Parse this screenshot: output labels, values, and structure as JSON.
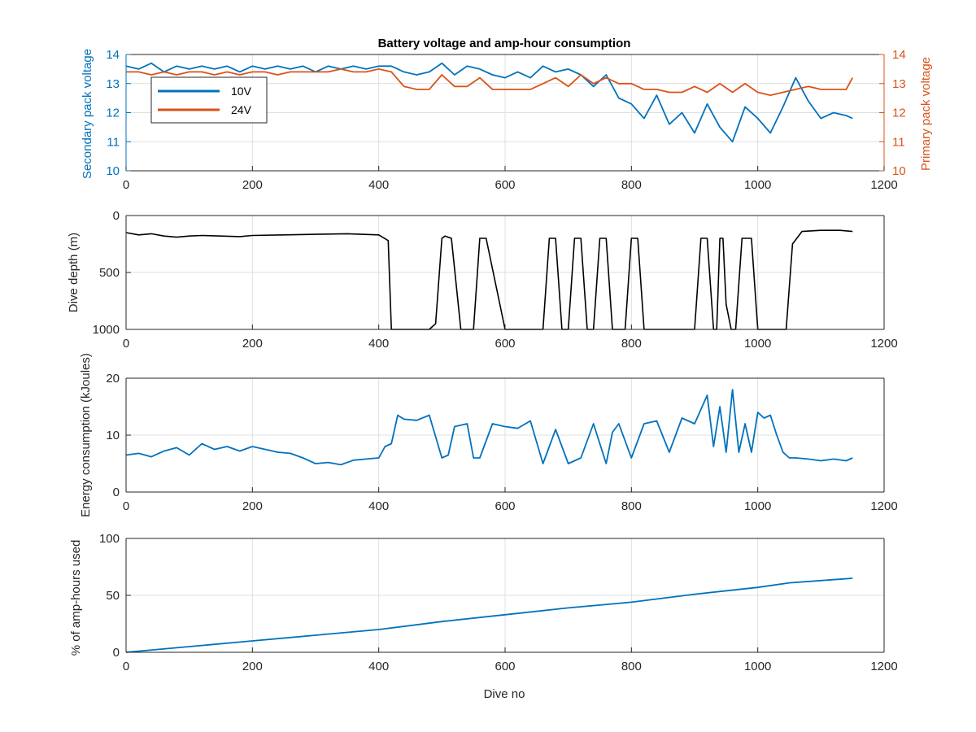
{
  "colors": {
    "series_10v": "#0072BD",
    "series_24v": "#D95319",
    "depth": "#000000",
    "energy": "#0072BD",
    "amp_hours": "#0072BD",
    "axis": "#262626",
    "grid": "#dfdfdf"
  },
  "chart_data": [
    {
      "type": "line",
      "title": "Battery voltage and amp-hour consumption",
      "xlabel": "",
      "ylabel": "Secondary pack voltage",
      "ylabel_right": "Primary pack voltage",
      "xlim": [
        0,
        1200
      ],
      "ylim": [
        10,
        14
      ],
      "ylim_right": [
        10,
        14
      ],
      "x_ticks": [
        0,
        200,
        400,
        600,
        800,
        1000,
        1200
      ],
      "y_ticks": [
        10,
        11,
        12,
        13,
        14
      ],
      "y_ticks_right": [
        10,
        11,
        12,
        13,
        14
      ],
      "grid": true,
      "legend": {
        "position": "top-left",
        "entries": [
          "10V",
          "24V"
        ]
      },
      "series": [
        {
          "name": "10V",
          "axis": "left",
          "x": [
            0,
            20,
            40,
            60,
            80,
            100,
            120,
            140,
            160,
            180,
            200,
            220,
            240,
            260,
            280,
            300,
            320,
            340,
            360,
            380,
            400,
            420,
            440,
            460,
            480,
            500,
            520,
            540,
            560,
            580,
            600,
            620,
            640,
            660,
            680,
            700,
            720,
            740,
            760,
            780,
            800,
            820,
            840,
            860,
            880,
            900,
            920,
            940,
            960,
            980,
            1000,
            1020,
            1040,
            1060,
            1080,
            1100,
            1120,
            1140,
            1150
          ],
          "y": [
            13.6,
            13.5,
            13.7,
            13.4,
            13.6,
            13.5,
            13.6,
            13.5,
            13.6,
            13.4,
            13.6,
            13.5,
            13.6,
            13.5,
            13.6,
            13.4,
            13.6,
            13.5,
            13.6,
            13.5,
            13.6,
            13.6,
            13.4,
            13.3,
            13.4,
            13.7,
            13.3,
            13.6,
            13.5,
            13.3,
            13.2,
            13.4,
            13.2,
            13.6,
            13.4,
            13.5,
            13.3,
            12.9,
            13.3,
            12.5,
            12.3,
            11.8,
            12.6,
            11.6,
            12.0,
            11.3,
            12.3,
            11.5,
            11.0,
            12.2,
            11.8,
            11.3,
            12.2,
            13.2,
            12.4,
            11.8,
            12.0,
            11.9,
            11.8
          ]
        },
        {
          "name": "24V",
          "axis": "right",
          "x": [
            0,
            20,
            40,
            60,
            80,
            100,
            120,
            140,
            160,
            180,
            200,
            220,
            240,
            260,
            280,
            300,
            320,
            340,
            360,
            380,
            400,
            420,
            440,
            460,
            480,
            500,
            520,
            540,
            560,
            580,
            600,
            620,
            640,
            660,
            680,
            700,
            720,
            740,
            760,
            780,
            800,
            820,
            840,
            860,
            880,
            900,
            920,
            940,
            960,
            980,
            1000,
            1020,
            1040,
            1060,
            1080,
            1100,
            1120,
            1140,
            1150
          ],
          "y": [
            13.4,
            13.4,
            13.3,
            13.4,
            13.3,
            13.4,
            13.4,
            13.3,
            13.4,
            13.3,
            13.4,
            13.4,
            13.3,
            13.4,
            13.4,
            13.4,
            13.4,
            13.5,
            13.4,
            13.4,
            13.5,
            13.4,
            12.9,
            12.8,
            12.8,
            13.3,
            12.9,
            12.9,
            13.2,
            12.8,
            12.8,
            12.8,
            12.8,
            13.0,
            13.2,
            12.9,
            13.3,
            13.0,
            13.2,
            13.0,
            13.0,
            12.8,
            12.8,
            12.7,
            12.7,
            12.9,
            12.7,
            13.0,
            12.7,
            13.0,
            12.7,
            12.6,
            12.7,
            12.8,
            12.9,
            12.8,
            12.8,
            12.8,
            13.2
          ]
        }
      ]
    },
    {
      "type": "line",
      "title": "",
      "xlabel": "",
      "ylabel": "Dive depth (m)",
      "xlim": [
        0,
        1200
      ],
      "ylim": [
        0,
        1000
      ],
      "y_reversed": true,
      "x_ticks": [
        0,
        200,
        400,
        600,
        800,
        1000,
        1200
      ],
      "y_ticks": [
        0,
        500,
        1000
      ],
      "grid": true,
      "series": [
        {
          "x": [
            0,
            20,
            40,
            60,
            80,
            100,
            120,
            150,
            180,
            200,
            250,
            300,
            350,
            400,
            415,
            420,
            425,
            430,
            440,
            450,
            470,
            480,
            490,
            500,
            505,
            515,
            530,
            540,
            550,
            560,
            570,
            600,
            650,
            660,
            670,
            680,
            690,
            700,
            710,
            720,
            730,
            740,
            750,
            760,
            770,
            780,
            790,
            800,
            810,
            820,
            830,
            840,
            850,
            880,
            890,
            900,
            910,
            920,
            930,
            935,
            940,
            945,
            950,
            958,
            965,
            975,
            990,
            1000,
            1010,
            1025,
            1035,
            1045,
            1055,
            1070,
            1100,
            1130,
            1150
          ],
          "y": [
            150,
            170,
            160,
            180,
            190,
            180,
            175,
            180,
            185,
            175,
            170,
            165,
            160,
            170,
            220,
            1000,
            1000,
            1000,
            1000,
            1000,
            1000,
            1000,
            950,
            200,
            180,
            200,
            1000,
            1000,
            1000,
            200,
            200,
            1000,
            1000,
            1000,
            200,
            200,
            1000,
            1000,
            200,
            200,
            1000,
            1000,
            200,
            200,
            1000,
            1000,
            1000,
            200,
            200,
            1000,
            1000,
            1000,
            1000,
            1000,
            1000,
            1000,
            200,
            200,
            1000,
            1000,
            200,
            200,
            780,
            1000,
            1000,
            200,
            200,
            1000,
            1000,
            1000,
            1000,
            1000,
            250,
            140,
            130,
            130,
            140
          ]
        }
      ]
    },
    {
      "type": "line",
      "title": "",
      "xlabel": "",
      "ylabel": "Energy consumption (kJoules)",
      "xlim": [
        0,
        1200
      ],
      "ylim": [
        0,
        20
      ],
      "x_ticks": [
        0,
        200,
        400,
        600,
        800,
        1000,
        1200
      ],
      "y_ticks": [
        0,
        10,
        20
      ],
      "grid": true,
      "series": [
        {
          "x": [
            0,
            20,
            40,
            60,
            80,
            100,
            120,
            140,
            160,
            180,
            200,
            220,
            240,
            260,
            280,
            300,
            320,
            340,
            360,
            380,
            400,
            410,
            420,
            430,
            440,
            460,
            480,
            500,
            510,
            520,
            540,
            550,
            560,
            580,
            600,
            620,
            640,
            660,
            670,
            680,
            700,
            720,
            740,
            760,
            770,
            780,
            800,
            820,
            840,
            860,
            880,
            900,
            920,
            930,
            940,
            950,
            960,
            970,
            980,
            990,
            1000,
            1010,
            1020,
            1030,
            1040,
            1050,
            1060,
            1080,
            1100,
            1120,
            1140,
            1150
          ],
          "y": [
            6.5,
            6.8,
            6.2,
            7.2,
            7.8,
            6.5,
            8.5,
            7.5,
            8.0,
            7.2,
            8.0,
            7.5,
            7.0,
            6.8,
            6.0,
            5.0,
            5.2,
            4.8,
            5.6,
            5.8,
            6.0,
            8.0,
            8.5,
            13.5,
            12.8,
            12.6,
            13.5,
            6.0,
            6.5,
            11.5,
            12.0,
            6.0,
            6.0,
            12.0,
            11.5,
            11.2,
            12.5,
            5.0,
            8.0,
            11.0,
            5.0,
            6.0,
            12.0,
            5.0,
            10.5,
            12.0,
            6.0,
            12.0,
            12.5,
            7.0,
            13.0,
            12.0,
            17.0,
            8.0,
            15.0,
            7.0,
            18.0,
            7.0,
            12.0,
            7.0,
            14.0,
            13.0,
            13.5,
            10.0,
            7.0,
            6.0,
            6.0,
            5.8,
            5.5,
            5.8,
            5.5,
            6.0
          ]
        }
      ]
    },
    {
      "type": "line",
      "title": "",
      "xlabel": "Dive no",
      "ylabel": "% of amp-hours used",
      "xlim": [
        0,
        1200
      ],
      "ylim": [
        0,
        100
      ],
      "x_ticks": [
        0,
        200,
        400,
        600,
        800,
        1000,
        1200
      ],
      "y_ticks": [
        0,
        50,
        100
      ],
      "grid": true,
      "series": [
        {
          "x": [
            0,
            100,
            200,
            300,
            400,
            500,
            600,
            700,
            800,
            900,
            1000,
            1050,
            1100,
            1150
          ],
          "y": [
            0,
            5,
            10,
            15,
            20,
            27,
            33,
            39,
            44,
            51,
            57,
            61,
            63,
            65
          ]
        }
      ]
    }
  ]
}
